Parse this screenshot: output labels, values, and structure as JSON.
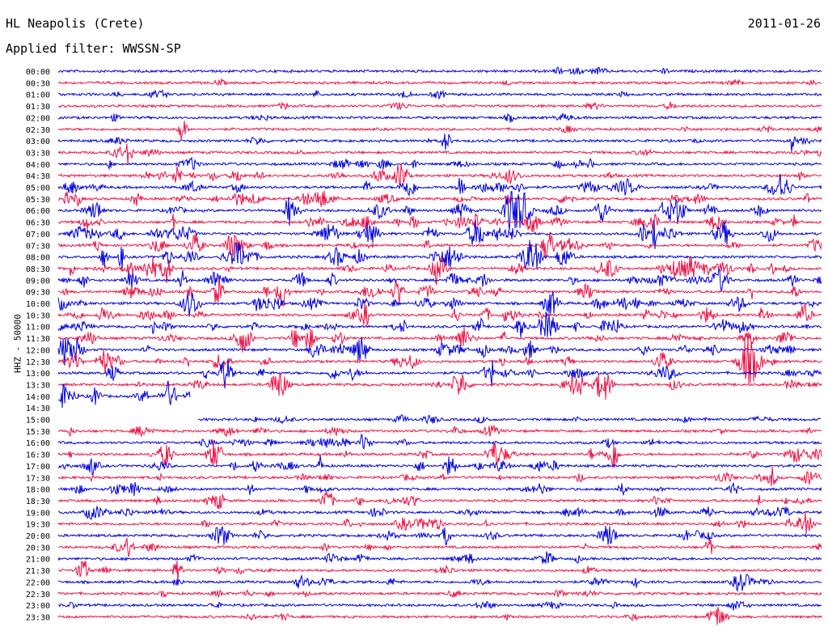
{
  "header": {
    "station": "HL Neapolis (Crete)",
    "date": "2011-01-26",
    "filter": "Applied filter: WWSSN-SP"
  },
  "chart_data": {
    "type": "line",
    "title": "HL Neapolis (Crete)",
    "subtitle": "Applied filter: WWSSN-SP",
    "ylabel": "HHZ - 50000",
    "row_labels": [
      "00:00",
      "00:30",
      "01:00",
      "01:30",
      "02:00",
      "02:30",
      "03:00",
      "03:30",
      "04:00",
      "04:30",
      "05:00",
      "05:30",
      "06:00",
      "06:30",
      "07:00",
      "07:30",
      "08:00",
      "08:30",
      "09:00",
      "09:30",
      "10:00",
      "10:30",
      "11:00",
      "11:30",
      "12:00",
      "12:30",
      "13:00",
      "13:30",
      "14:00",
      "14:30",
      "15:00",
      "15:30",
      "16:00",
      "16:30",
      "17:00",
      "17:30",
      "18:00",
      "18:30",
      "19:00",
      "19:30",
      "20:00",
      "20:30",
      "21:00",
      "21:30",
      "22:00",
      "22:30",
      "23:00",
      "23:30"
    ],
    "row_activity": [
      0.15,
      0.15,
      0.25,
      0.15,
      0.15,
      0.2,
      0.25,
      0.3,
      0.45,
      0.6,
      0.7,
      0.75,
      0.85,
      0.85,
      0.85,
      0.85,
      0.85,
      0.85,
      0.9,
      0.85,
      0.85,
      0.85,
      0.85,
      0.85,
      0.8,
      0.8,
      0.75,
      0.7,
      0.5,
      0.0,
      0.35,
      0.4,
      0.45,
      0.6,
      0.6,
      0.5,
      0.55,
      0.55,
      0.6,
      0.55,
      0.5,
      0.35,
      0.35,
      0.3,
      0.4,
      0.3,
      0.25,
      0.2
    ],
    "gap_rows": [
      {
        "row": 28,
        "end_minute": 5.2
      },
      {
        "row": 29
      },
      {
        "row": 30,
        "start_minute": 5.5
      }
    ],
    "colors": {
      "even": "#0000dd",
      "odd": "#ee1144"
    },
    "x_minutes_per_row": 30
  }
}
